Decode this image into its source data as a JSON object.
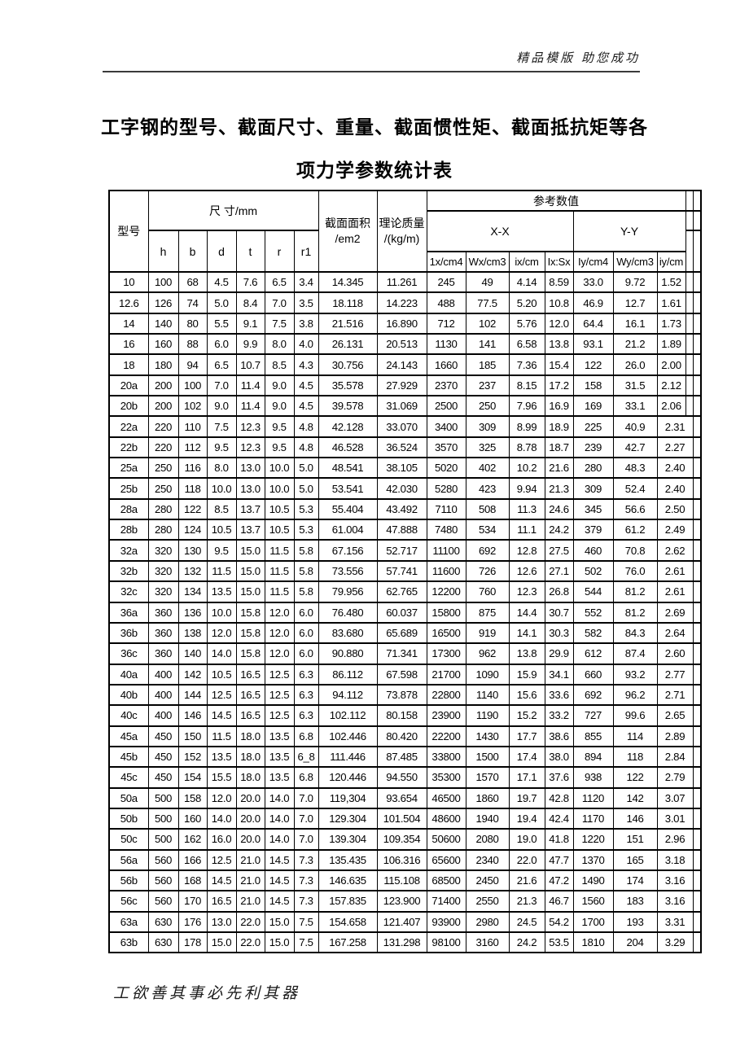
{
  "header": {
    "watermark": "精品模版 助您成功"
  },
  "title": {
    "line1": "工字钢的型号、截面尺寸、重量、截面惯性矩、截面抵抗矩等各",
    "line2": "项力学参数统计表"
  },
  "table": {
    "col_model": "型号",
    "col_dims": "尺  寸/mm",
    "dim_subcols": [
      "h",
      "b",
      "d",
      "t",
      "r",
      "r1"
    ],
    "col_area_line1": "截面面积",
    "col_area_line2": "/em2",
    "col_mass_line1": "理论质量",
    "col_mass_line2": "/(kg/m)",
    "col_ref": "参考数值",
    "col_xx": "X-X",
    "col_yy": "Y-Y",
    "unit_cols": [
      "1x/cm4",
      "Wx/cm3",
      "ix/cm",
      "Ix:Sx",
      "Iy/cm4",
      "Wy/cm3",
      "iy/cm"
    ],
    "rows": [
      [
        "10",
        "100",
        "68",
        "4.5",
        "7.6",
        "6.5",
        "3.4",
        "14.345",
        "11.261",
        "245",
        "49",
        "4.14",
        "8.59",
        "33.0",
        "9.72",
        "1.52"
      ],
      [
        "12.6",
        "126",
        "74",
        "5.0",
        "8.4",
        "7.0",
        "3.5",
        "18.118",
        "14.223",
        "488",
        "77.5",
        "5.20",
        "10.8",
        "46.9",
        "12.7",
        "1.61"
      ],
      [
        "14",
        "140",
        "80",
        "5.5",
        "9.1",
        "7.5",
        "3.8",
        "21.516",
        "16.890",
        "712",
        "102",
        "5.76",
        "12.0",
        "64.4",
        "16.1",
        "1.73"
      ],
      [
        "16",
        "160",
        "88",
        "6.0",
        "9.9",
        "8.0",
        "4.0",
        "26.131",
        "20.513",
        "1130",
        "141",
        "6.58",
        "13.8",
        "93.1",
        "21.2",
        "1.89"
      ],
      [
        "18",
        "180",
        "94",
        "6.5",
        "10.7",
        "8.5",
        "4.3",
        "30.756",
        "24.143",
        "1660",
        "185",
        "7.36",
        "15.4",
        "122",
        "26.0",
        "2.00"
      ],
      [
        "20a",
        "200",
        "100",
        "7.0",
        "11.4",
        "9.0",
        "4.5",
        "35.578",
        "27.929",
        "2370",
        "237",
        "8.15",
        "17.2",
        "158",
        "31.5",
        "2.12"
      ],
      [
        "20b",
        "200",
        "102",
        "9.0",
        "11.4",
        "9.0",
        "4.5",
        "39.578",
        "31.069",
        "2500",
        "250",
        "7.96",
        "16.9",
        "169",
        "33.1",
        "2.06"
      ],
      [
        "22a",
        "220",
        "110",
        "7.5",
        "12.3",
        "9.5",
        "4.8",
        "42.128",
        "33.070",
        "3400",
        "309",
        "8.99",
        "18.9",
        "225",
        "40.9",
        "2.31"
      ],
      [
        "22b",
        "220",
        "112",
        "9.5",
        "12.3",
        "9.5",
        "4.8",
        "46.528",
        "36.524",
        "3570",
        "325",
        "8.78",
        "18.7",
        "239",
        "42.7",
        "2.27"
      ],
      [
        "25a",
        "250",
        "116",
        "8.0",
        "13.0",
        "10.0",
        "5.0",
        "48.541",
        "38.105",
        "5020",
        "402",
        "10.2",
        "21.6",
        "280",
        "48.3",
        "2.40"
      ],
      [
        "25b",
        "250",
        "118",
        "10.0",
        "13.0",
        "10.0",
        "5.0",
        "53.541",
        "42.030",
        "5280",
        "423",
        "9.94",
        "21.3",
        "309",
        "52.4",
        "2.40"
      ],
      [
        "28a",
        "280",
        "122",
        "8.5",
        "13.7",
        "10.5",
        "5.3",
        "55.404",
        "43.492",
        "7110",
        "508",
        "11.3",
        "24.6",
        "345",
        "56.6",
        "2.50"
      ],
      [
        "28b",
        "280",
        "124",
        "10.5",
        "13.7",
        "10.5",
        "5.3",
        "61.004",
        "47.888",
        "7480",
        "534",
        "11.1",
        "24.2",
        "379",
        "61.2",
        "2.49"
      ],
      [
        "32a",
        "320",
        "130",
        "9.5",
        "15.0",
        "11.5",
        "5.8",
        "67.156",
        "52.717",
        "11100",
        "692",
        "12.8",
        "27.5",
        "460",
        "70.8",
        "2.62"
      ],
      [
        "32b",
        "320",
        "132",
        "11.5",
        "15.0",
        "11.5",
        "5.8",
        "73.556",
        "57.741",
        "11600",
        "726",
        "12.6",
        "27.1",
        "502",
        "76.0",
        "2.61"
      ],
      [
        "32c",
        "320",
        "134",
        "13.5",
        "15.0",
        "11.5",
        "5.8",
        "79.956",
        "62.765",
        "12200",
        "760",
        "12.3",
        "26.8",
        "544",
        "81.2",
        "2.61"
      ],
      [
        "36a",
        "360",
        "136",
        "10.0",
        "15.8",
        "12.0",
        "6.0",
        "76.480",
        "60.037",
        "15800",
        "875",
        "14.4",
        "30.7",
        "552",
        "81.2",
        "2.69"
      ],
      [
        "36b",
        "360",
        "138",
        "12.0",
        "15.8",
        "12.0",
        "6.0",
        "83.680",
        "65.689",
        "16500",
        "919",
        "14.1",
        "30.3",
        "582",
        "84.3",
        "2.64"
      ],
      [
        "36c",
        "360",
        "140",
        "14.0",
        "15.8",
        "12.0",
        "6.0",
        "90.880",
        "71.341",
        "17300",
        "962",
        "13.8",
        "29.9",
        "612",
        "87.4",
        "2.60"
      ],
      [
        "40a",
        "400",
        "142",
        "10.5",
        "16.5",
        "12.5",
        "6.3",
        "86.112",
        "67.598",
        "21700",
        "1090",
        "15.9",
        "34.1",
        "660",
        "93.2",
        "2.77"
      ],
      [
        "40b",
        "400",
        "144",
        "12.5",
        "16.5",
        "12.5",
        "6.3",
        "94.112",
        "73.878",
        "22800",
        "1140",
        "15.6",
        "33.6",
        "692",
        "96.2",
        "2.71"
      ],
      [
        "40c",
        "400",
        "146",
        "14.5",
        "16.5",
        "12.5",
        "6.3",
        "102.112",
        "80.158",
        "23900",
        "1190",
        "15.2",
        "33.2",
        "727",
        "99.6",
        "2.65"
      ],
      [
        "45a",
        "450",
        "150",
        "11.5",
        "18.0",
        "13.5",
        "6.8",
        "102.446",
        "80.420",
        "22200",
        "1430",
        "17.7",
        "38.6",
        "855",
        "114",
        "2.89"
      ],
      [
        "45b",
        "450",
        "152",
        "13.5",
        "18.0",
        "13.5",
        "6_8",
        "111.446",
        "87.485",
        "33800",
        "1500",
        "17.4",
        "38.0",
        "894",
        "118",
        "2.84"
      ],
      [
        "45c",
        "450",
        "154",
        "15.5",
        "18.0",
        "13.5",
        "6.8",
        "120.446",
        "94.550",
        "35300",
        "1570",
        "17.1",
        "37.6",
        "938",
        "122",
        "2.79"
      ],
      [
        "50a",
        "500",
        "158",
        "12.0",
        "20.0",
        "14.0",
        "7.0",
        "119,304",
        "93.654",
        "46500",
        "1860",
        "19.7",
        "42.8",
        "1120",
        "142",
        "3.07"
      ],
      [
        "50b",
        "500",
        "160",
        "14.0",
        "20.0",
        "14.0",
        "7.0",
        "129.304",
        "101.504",
        "48600",
        "1940",
        "19.4",
        "42.4",
        "1170",
        "146",
        "3.01"
      ],
      [
        "50c",
        "500",
        "162",
        "16.0",
        "20.0",
        "14.0",
        "7.0",
        "139.304",
        "109.354",
        "50600",
        "2080",
        "19.0",
        "41.8",
        "1220",
        "151",
        "2.96"
      ],
      [
        "56a",
        "560",
        "166",
        "12.5",
        "21.0",
        "14.5",
        "7.3",
        "135.435",
        "106.316",
        "65600",
        "2340",
        "22.0",
        "47.7",
        "1370",
        "165",
        "3.18"
      ],
      [
        "56b",
        "560",
        "168",
        "14.5",
        "21.0",
        "14.5",
        "7.3",
        "146.635",
        "115.108",
        "68500",
        "2450",
        "21.6",
        "47.2",
        "1490",
        "174",
        "3.16"
      ],
      [
        "56c",
        "560",
        "170",
        "16.5",
        "21.0",
        "14.5",
        "7.3",
        "157.835",
        "123.900",
        "71400",
        "2550",
        "21.3",
        "46.7",
        "1560",
        "183",
        "3.16"
      ],
      [
        "63a",
        "630",
        "176",
        "13.0",
        "22.0",
        "15.0",
        "7.5",
        "154.658",
        "121.407",
        "93900",
        "2980",
        "24.5",
        "54.2",
        "1700",
        "193",
        "3.31"
      ],
      [
        "63b",
        "630",
        "178",
        "15.0",
        "22.0",
        "15.0",
        "7.5",
        "167.258",
        "131.298",
        "98100",
        "3160",
        "24.2",
        "53.5",
        "1810",
        "204",
        "3.29"
      ]
    ]
  },
  "footer": {
    "text": "工欲善其事必先利其器"
  },
  "colors": {
    "text": "#000000",
    "border": "#000000",
    "rule": "#3b3b3b"
  }
}
